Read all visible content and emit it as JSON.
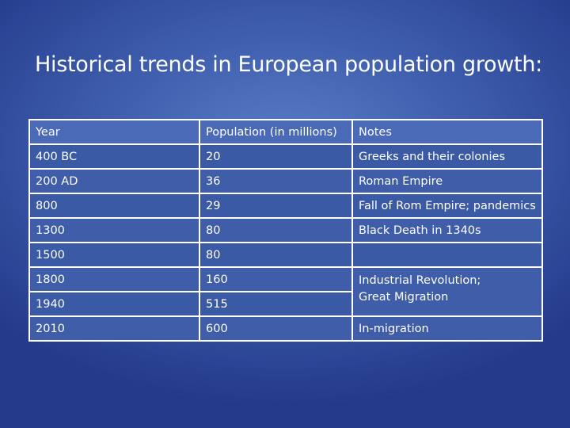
{
  "title": "Historical trends in European population growth:",
  "table": {
    "headers": [
      "Year",
      "Population (in millions)",
      "Notes"
    ],
    "rows": [
      {
        "year": "400 BC",
        "population": "20",
        "notes": "Greeks and their colonies"
      },
      {
        "year": "200 AD",
        "population": "36",
        "notes": "Roman Empire"
      },
      {
        "year": "800",
        "population": "29",
        "notes": "Fall of Rom Empire; pandemics"
      },
      {
        "year": "1300",
        "population": "80",
        "notes": "Black Death in 1340s"
      },
      {
        "year": "1500",
        "population": "80",
        "notes": ""
      },
      {
        "year": "1800",
        "population": "160",
        "notes_lines": [
          "Industrial Revolution;",
          "Great Migration"
        ]
      },
      {
        "year": "1940",
        "population": "515"
      },
      {
        "year": "2010",
        "population": "600",
        "notes": "In-migration"
      }
    ]
  },
  "colors": {
    "background_center": "#5a7cc6",
    "background_edge": "#24398a",
    "header_fill": "#4a6ab8",
    "row_fill": "#3b5aa6",
    "border": "#ffffff",
    "text": "#ffffff"
  }
}
